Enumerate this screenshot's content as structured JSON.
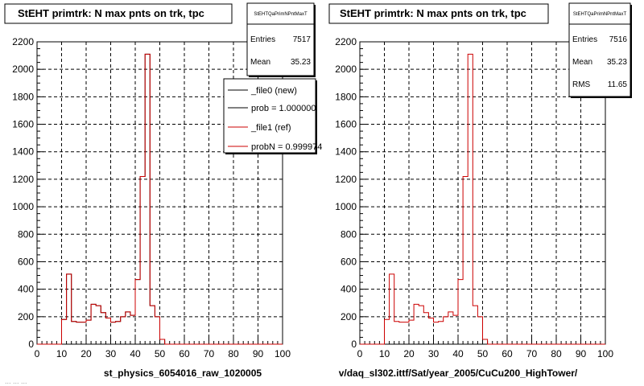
{
  "footer": "... ... ...",
  "chart_data": [
    {
      "type": "line",
      "title": "StEHT primtrk: N max pnts on trk, tpc",
      "stats": {
        "header": "StEHTQaPrimNPntMaxT",
        "rows": [
          {
            "label": "Entries",
            "value": "7517"
          },
          {
            "label": "Mean",
            "value": "35.23"
          }
        ]
      },
      "legend": [
        {
          "label": "_file0 (new)",
          "color": "#000000"
        },
        {
          "label": "prob = 1.000000",
          "color": "#000000"
        },
        {
          "label": "_file1 (ref)",
          "color": "#cc0000"
        },
        {
          "label": "probN = 0.999974",
          "color": "#cc0000"
        }
      ],
      "xlabel": "st_physics_6054016_raw_1020005",
      "xlim": [
        0,
        100
      ],
      "ylim": [
        0,
        2200
      ],
      "x_ticks": [
        0,
        10,
        20,
        30,
        40,
        50,
        60,
        70,
        80,
        90,
        100
      ],
      "y_ticks": [
        0,
        200,
        400,
        600,
        800,
        1000,
        1200,
        1400,
        1600,
        1800,
        2000,
        2200
      ],
      "bin_width": 2,
      "bin_edges_start": 0,
      "series": [
        {
          "name": "_file0 (new)",
          "color": "#000000",
          "values": [
            0,
            0,
            0,
            0,
            0,
            180,
            510,
            165,
            160,
            160,
            175,
            290,
            280,
            230,
            190,
            160,
            165,
            200,
            235,
            210,
            470,
            1220,
            2110,
            280,
            200,
            35,
            0,
            0,
            0,
            0,
            0,
            0,
            0,
            0,
            0,
            0,
            0,
            0,
            0,
            0,
            0,
            0,
            0,
            0,
            0,
            0,
            0,
            0,
            0,
            0
          ]
        },
        {
          "name": "_file1 (ref)",
          "color": "#cc0000",
          "values": [
            0,
            0,
            0,
            0,
            0,
            180,
            510,
            165,
            160,
            160,
            175,
            290,
            280,
            230,
            190,
            160,
            165,
            200,
            235,
            210,
            470,
            1220,
            2110,
            280,
            200,
            35,
            0,
            0,
            0,
            0,
            0,
            0,
            0,
            0,
            0,
            0,
            0,
            0,
            0,
            0,
            0,
            0,
            0,
            0,
            0,
            0,
            0,
            0,
            0,
            0
          ]
        }
      ]
    },
    {
      "type": "line",
      "title": "StEHT primtrk: N max pnts on trk, tpc",
      "stats": {
        "header": "StEHTQaPrimNPntMaxT",
        "rows": [
          {
            "label": "Entries",
            "value": "7516"
          },
          {
            "label": "Mean",
            "value": "35.23"
          },
          {
            "label": "RMS",
            "value": "11.65"
          }
        ]
      },
      "legend": [],
      "xlabel": "v/daq_sl302.ittf/Sat/year_2005/CuCu200_HighTower/",
      "xlim": [
        0,
        100
      ],
      "ylim": [
        0,
        2200
      ],
      "x_ticks": [
        0,
        10,
        20,
        30,
        40,
        50,
        60,
        70,
        80,
        90,
        100
      ],
      "y_ticks": [
        0,
        200,
        400,
        600,
        800,
        1000,
        1200,
        1400,
        1600,
        1800,
        2000,
        2200
      ],
      "bin_width": 2,
      "bin_edges_start": 0,
      "series": [
        {
          "color": "#cc0000",
          "values": [
            0,
            0,
            0,
            0,
            0,
            180,
            510,
            165,
            160,
            160,
            175,
            290,
            280,
            230,
            190,
            160,
            165,
            200,
            235,
            210,
            470,
            1220,
            2110,
            280,
            200,
            35,
            0,
            0,
            0,
            0,
            0,
            0,
            0,
            0,
            0,
            0,
            0,
            0,
            0,
            0,
            0,
            0,
            0,
            0,
            0,
            0,
            0,
            0,
            0,
            0
          ]
        }
      ]
    }
  ]
}
